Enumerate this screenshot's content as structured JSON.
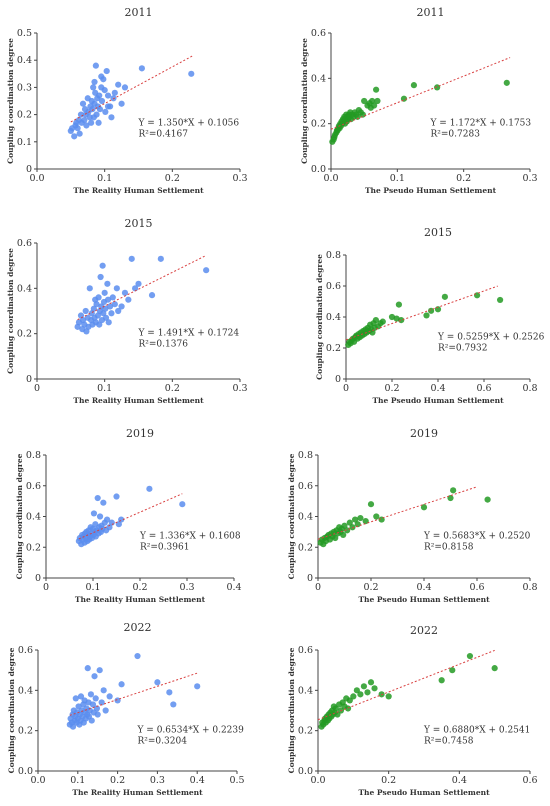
{
  "chart_data": [
    {
      "type": "scatter",
      "title": "2011",
      "xlabel": "The Reality Human Settlement",
      "ylabel": "Coupling coordination degree",
      "xlim": [
        0,
        0.3
      ],
      "ylim": [
        0,
        0.5
      ],
      "xticks": [
        "0.0",
        "0.1",
        "0.2",
        "0.3"
      ],
      "yticks": [
        "0",
        "0.1",
        "0.2",
        "0.3",
        "0.4",
        "0.5"
      ],
      "equation": "Y = 1.350*X + 0.1056",
      "r2": "R²=0.4167",
      "grid": false,
      "color": "#5b8def",
      "fit": {
        "slope": 1.35,
        "intercept": 0.1056,
        "x_range": [
          0.05,
          0.23
        ]
      },
      "x": [
        0.05,
        0.052,
        0.055,
        0.057,
        0.058,
        0.06,
        0.062,
        0.063,
        0.065,
        0.066,
        0.068,
        0.07,
        0.071,
        0.072,
        0.073,
        0.075,
        0.076,
        0.078,
        0.079,
        0.08,
        0.081,
        0.082,
        0.083,
        0.084,
        0.085,
        0.086,
        0.087,
        0.088,
        0.089,
        0.09,
        0.091,
        0.092,
        0.093,
        0.095,
        0.096,
        0.098,
        0.1,
        0.101,
        0.103,
        0.105,
        0.108,
        0.11,
        0.113,
        0.115,
        0.12,
        0.125,
        0.13,
        0.155,
        0.228,
        0.085,
        0.095,
        0.105
      ],
      "y": [
        0.14,
        0.15,
        0.12,
        0.16,
        0.17,
        0.15,
        0.18,
        0.13,
        0.2,
        0.17,
        0.24,
        0.18,
        0.22,
        0.2,
        0.16,
        0.26,
        0.21,
        0.19,
        0.23,
        0.17,
        0.25,
        0.22,
        0.3,
        0.19,
        0.24,
        0.28,
        0.38,
        0.2,
        0.26,
        0.23,
        0.17,
        0.27,
        0.22,
        0.3,
        0.25,
        0.33,
        0.29,
        0.21,
        0.36,
        0.27,
        0.23,
        0.19,
        0.26,
        0.28,
        0.31,
        0.24,
        0.3,
        0.37,
        0.35,
        0.32,
        0.34,
        0.23
      ]
    },
    {
      "type": "scatter",
      "title": "2011",
      "xlabel": "The Pseudo Human Settlement",
      "ylabel": "Coupling coordination degree",
      "xlim": [
        0,
        0.3
      ],
      "ylim": [
        0,
        0.6
      ],
      "xticks": [
        "0.0",
        "0.1",
        "0.2",
        "0.3"
      ],
      "yticks": [
        "0.0",
        "0.2",
        "0.4",
        "0.6"
      ],
      "equation": "Y = 1.172*X + 0.1753",
      "r2": "R²=0.7283",
      "grid": false,
      "color": "#239a23",
      "fit": {
        "slope": 1.172,
        "intercept": 0.1753,
        "x_range": [
          0.0,
          0.27
        ]
      },
      "x": [
        0.002,
        0.004,
        0.005,
        0.006,
        0.008,
        0.009,
        0.01,
        0.011,
        0.012,
        0.013,
        0.014,
        0.015,
        0.016,
        0.017,
        0.018,
        0.019,
        0.02,
        0.021,
        0.022,
        0.023,
        0.024,
        0.025,
        0.026,
        0.027,
        0.028,
        0.029,
        0.03,
        0.032,
        0.034,
        0.036,
        0.038,
        0.04,
        0.042,
        0.045,
        0.048,
        0.05,
        0.055,
        0.058,
        0.06,
        0.062,
        0.065,
        0.068,
        0.07,
        0.11,
        0.125,
        0.16,
        0.265
      ],
      "y": [
        0.12,
        0.13,
        0.14,
        0.15,
        0.16,
        0.17,
        0.17,
        0.18,
        0.19,
        0.18,
        0.2,
        0.19,
        0.21,
        0.2,
        0.22,
        0.21,
        0.23,
        0.2,
        0.22,
        0.24,
        0.21,
        0.23,
        0.22,
        0.24,
        0.23,
        0.25,
        0.22,
        0.24,
        0.23,
        0.25,
        0.24,
        0.23,
        0.26,
        0.25,
        0.24,
        0.3,
        0.28,
        0.29,
        0.27,
        0.3,
        0.28,
        0.35,
        0.3,
        0.31,
        0.37,
        0.36,
        0.38
      ]
    },
    {
      "type": "scatter",
      "title": "2015",
      "xlabel": "The Reality Human Settlement",
      "ylabel": "Coupling coordination degree",
      "xlim": [
        0,
        0.3
      ],
      "ylim": [
        0,
        0.6
      ],
      "xticks": [
        "0",
        "0.1",
        "0.2",
        "0.3"
      ],
      "yticks": [
        "0",
        "0.2",
        "0.4",
        "0.6"
      ],
      "equation": "Y = 1.491*X + 0.1724",
      "r2": "R²=0.1376",
      "grid": false,
      "color": "#5b8def",
      "fit": {
        "slope": 1.491,
        "intercept": 0.1724,
        "x_range": [
          0.06,
          0.25
        ]
      },
      "x": [
        0.06,
        0.062,
        0.065,
        0.067,
        0.068,
        0.07,
        0.072,
        0.073,
        0.075,
        0.076,
        0.078,
        0.08,
        0.081,
        0.082,
        0.084,
        0.085,
        0.086,
        0.087,
        0.088,
        0.09,
        0.091,
        0.092,
        0.093,
        0.094,
        0.095,
        0.096,
        0.097,
        0.098,
        0.099,
        0.1,
        0.101,
        0.102,
        0.104,
        0.105,
        0.106,
        0.108,
        0.11,
        0.112,
        0.115,
        0.118,
        0.12,
        0.125,
        0.13,
        0.135,
        0.14,
        0.145,
        0.15,
        0.17,
        0.183,
        0.25
      ],
      "y": [
        0.23,
        0.25,
        0.28,
        0.22,
        0.26,
        0.24,
        0.3,
        0.21,
        0.27,
        0.23,
        0.4,
        0.26,
        0.29,
        0.24,
        0.31,
        0.27,
        0.35,
        0.25,
        0.33,
        0.28,
        0.36,
        0.24,
        0.3,
        0.45,
        0.32,
        0.26,
        0.5,
        0.29,
        0.34,
        0.38,
        0.31,
        0.27,
        0.42,
        0.35,
        0.25,
        0.32,
        0.29,
        0.36,
        0.33,
        0.4,
        0.3,
        0.32,
        0.38,
        0.35,
        0.53,
        0.4,
        0.42,
        0.37,
        0.53,
        0.48
      ]
    },
    {
      "type": "scatter",
      "title": "2015",
      "xlabel": "The Pseudo Human Settlement",
      "ylabel": "Coupling coordination degree",
      "xlim": [
        0,
        0.8
      ],
      "ylim": [
        0,
        0.8
      ],
      "xticks": [
        "0",
        "0.2",
        "0.4",
        "0.6",
        "0.8"
      ],
      "yticks": [
        "0",
        "0.2",
        "0.4",
        "0.6",
        "0.8"
      ],
      "equation": "Y = 0.5259*X + 0.2526",
      "r2": "R²=0.7932",
      "grid": false,
      "color": "#239a23",
      "fit": {
        "slope": 0.5259,
        "intercept": 0.2526,
        "x_range": [
          0.0,
          0.66
        ]
      },
      "x": [
        0.01,
        0.015,
        0.02,
        0.025,
        0.03,
        0.035,
        0.04,
        0.045,
        0.05,
        0.055,
        0.06,
        0.065,
        0.07,
        0.075,
        0.08,
        0.085,
        0.09,
        0.095,
        0.1,
        0.105,
        0.11,
        0.115,
        0.12,
        0.125,
        0.13,
        0.14,
        0.15,
        0.16,
        0.2,
        0.22,
        0.23,
        0.24,
        0.35,
        0.37,
        0.4,
        0.43,
        0.57,
        0.67
      ],
      "y": [
        0.22,
        0.24,
        0.23,
        0.25,
        0.26,
        0.24,
        0.27,
        0.28,
        0.26,
        0.29,
        0.27,
        0.3,
        0.28,
        0.31,
        0.29,
        0.32,
        0.3,
        0.33,
        0.31,
        0.35,
        0.32,
        0.3,
        0.36,
        0.33,
        0.38,
        0.34,
        0.36,
        0.37,
        0.4,
        0.39,
        0.48,
        0.38,
        0.41,
        0.44,
        0.45,
        0.53,
        0.54,
        0.51
      ]
    },
    {
      "type": "scatter",
      "title": "2019",
      "xlabel": "The Reality Human Settlement",
      "ylabel": "Coupling coordination degree",
      "xlim": [
        0,
        0.4
      ],
      "ylim": [
        0,
        0.8
      ],
      "xticks": [
        "0",
        "0.1",
        "0.2",
        "0.3",
        "0.4"
      ],
      "yticks": [
        "0",
        "0.2",
        "0.4",
        "0.6",
        "0.8"
      ],
      "equation": "Y = 1.336*X + 0.1608",
      "r2": "R²=0.3961",
      "grid": false,
      "color": "#5b8def",
      "fit": {
        "slope": 1.336,
        "intercept": 0.1608,
        "x_range": [
          0.07,
          0.29
        ]
      },
      "x": [
        0.07,
        0.072,
        0.075,
        0.077,
        0.078,
        0.08,
        0.082,
        0.083,
        0.085,
        0.086,
        0.088,
        0.09,
        0.091,
        0.092,
        0.094,
        0.095,
        0.096,
        0.098,
        0.1,
        0.101,
        0.102,
        0.104,
        0.105,
        0.106,
        0.108,
        0.11,
        0.112,
        0.113,
        0.115,
        0.117,
        0.118,
        0.12,
        0.122,
        0.125,
        0.128,
        0.13,
        0.135,
        0.14,
        0.15,
        0.155,
        0.16,
        0.22,
        0.29
      ],
      "y": [
        0.24,
        0.26,
        0.22,
        0.28,
        0.25,
        0.27,
        0.23,
        0.29,
        0.26,
        0.3,
        0.24,
        0.28,
        0.31,
        0.25,
        0.27,
        0.33,
        0.29,
        0.26,
        0.32,
        0.28,
        0.42,
        0.3,
        0.35,
        0.27,
        0.31,
        0.52,
        0.29,
        0.33,
        0.4,
        0.3,
        0.34,
        0.32,
        0.49,
        0.36,
        0.31,
        0.38,
        0.33,
        0.36,
        0.53,
        0.35,
        0.38,
        0.58,
        0.48
      ]
    },
    {
      "type": "scatter",
      "title": "2019",
      "xlabel": "The Pseudo Human Settlement",
      "ylabel": "Coupling coordination degree",
      "xlim": [
        0,
        0.8
      ],
      "ylim": [
        0,
        0.8
      ],
      "xticks": [
        "0",
        "0.2",
        "0.4",
        "0.6",
        "0.8"
      ],
      "yticks": [
        "0",
        "0.2",
        "0.4",
        "0.6",
        "0.8"
      ],
      "equation": "Y = 0.5683*X + 0.2520",
      "r2": "R²=0.8158",
      "grid": false,
      "color": "#239a23",
      "fit": {
        "slope": 0.5683,
        "intercept": 0.252,
        "x_range": [
          0.0,
          0.6
        ]
      },
      "x": [
        0.01,
        0.015,
        0.02,
        0.025,
        0.03,
        0.035,
        0.04,
        0.045,
        0.05,
        0.055,
        0.06,
        0.065,
        0.07,
        0.075,
        0.08,
        0.085,
        0.09,
        0.095,
        0.1,
        0.11,
        0.12,
        0.13,
        0.14,
        0.15,
        0.16,
        0.18,
        0.2,
        0.22,
        0.24,
        0.4,
        0.5,
        0.51,
        0.64
      ],
      "y": [
        0.23,
        0.25,
        0.22,
        0.26,
        0.24,
        0.27,
        0.28,
        0.25,
        0.29,
        0.27,
        0.3,
        0.26,
        0.31,
        0.29,
        0.33,
        0.3,
        0.32,
        0.28,
        0.34,
        0.31,
        0.36,
        0.33,
        0.38,
        0.35,
        0.39,
        0.37,
        0.48,
        0.4,
        0.38,
        0.46,
        0.52,
        0.57,
        0.51
      ]
    },
    {
      "type": "scatter",
      "title": "2022",
      "xlabel": "The Reality Human Settlement",
      "ylabel": "Coupling coordination degree",
      "xlim": [
        0,
        0.5
      ],
      "ylim": [
        0,
        0.6
      ],
      "xticks": [
        "0.0",
        "0.1",
        "0.2",
        "0.3",
        "0.4",
        "0.5"
      ],
      "yticks": [
        "0.0",
        "0.2",
        "0.4",
        "0.6"
      ],
      "equation": "Y = 0.6534*X + 0.2239",
      "r2": "R²=0.3204",
      "grid": false,
      "color": "#5b8def",
      "fit": {
        "slope": 0.6534,
        "intercept": 0.2239,
        "x_range": [
          0.08,
          0.4
        ]
      },
      "x": [
        0.08,
        0.082,
        0.085,
        0.087,
        0.088,
        0.09,
        0.092,
        0.094,
        0.095,
        0.097,
        0.098,
        0.1,
        0.102,
        0.104,
        0.105,
        0.107,
        0.108,
        0.11,
        0.112,
        0.114,
        0.115,
        0.117,
        0.118,
        0.12,
        0.122,
        0.124,
        0.125,
        0.127,
        0.128,
        0.13,
        0.133,
        0.135,
        0.138,
        0.14,
        0.142,
        0.145,
        0.148,
        0.15,
        0.155,
        0.16,
        0.165,
        0.17,
        0.18,
        0.2,
        0.21,
        0.25,
        0.3,
        0.33,
        0.34,
        0.4
      ],
      "y": [
        0.23,
        0.26,
        0.24,
        0.28,
        0.22,
        0.3,
        0.25,
        0.27,
        0.36,
        0.24,
        0.29,
        0.26,
        0.32,
        0.23,
        0.28,
        0.25,
        0.37,
        0.3,
        0.27,
        0.33,
        0.24,
        0.35,
        0.29,
        0.26,
        0.31,
        0.28,
        0.51,
        0.34,
        0.27,
        0.3,
        0.38,
        0.25,
        0.33,
        0.29,
        0.47,
        0.36,
        0.31,
        0.28,
        0.5,
        0.34,
        0.4,
        0.3,
        0.37,
        0.35,
        0.43,
        0.57,
        0.44,
        0.39,
        0.33,
        0.42
      ]
    },
    {
      "type": "scatter",
      "title": "2022",
      "xlabel": "The Pseudo Human Settlement",
      "ylabel": "Coupling coordination degree",
      "xlim": [
        0,
        0.6
      ],
      "ylim": [
        0,
        0.6
      ],
      "xticks": [
        "0.0",
        "0.2",
        "0.4",
        "0.6"
      ],
      "yticks": [
        "0.0",
        "0.2",
        "0.4",
        "0.6"
      ],
      "equation": "Y = 0.6880*X + 0.2541",
      "r2": "R²=0.7458",
      "grid": false,
      "color": "#239a23",
      "fit": {
        "slope": 0.688,
        "intercept": 0.2541,
        "x_range": [
          0.0,
          0.5
        ]
      },
      "x": [
        0.01,
        0.012,
        0.015,
        0.018,
        0.02,
        0.022,
        0.025,
        0.028,
        0.03,
        0.032,
        0.035,
        0.038,
        0.04,
        0.042,
        0.045,
        0.048,
        0.05,
        0.055,
        0.06,
        0.065,
        0.07,
        0.075,
        0.08,
        0.085,
        0.09,
        0.1,
        0.11,
        0.12,
        0.13,
        0.14,
        0.15,
        0.16,
        0.18,
        0.2,
        0.35,
        0.38,
        0.43,
        0.5
      ],
      "y": [
        0.22,
        0.24,
        0.23,
        0.25,
        0.26,
        0.24,
        0.27,
        0.25,
        0.28,
        0.26,
        0.29,
        0.27,
        0.3,
        0.28,
        0.32,
        0.29,
        0.31,
        0.28,
        0.33,
        0.3,
        0.34,
        0.32,
        0.36,
        0.31,
        0.35,
        0.37,
        0.4,
        0.38,
        0.42,
        0.39,
        0.44,
        0.41,
        0.38,
        0.37,
        0.45,
        0.5,
        0.57,
        0.51
      ]
    }
  ]
}
